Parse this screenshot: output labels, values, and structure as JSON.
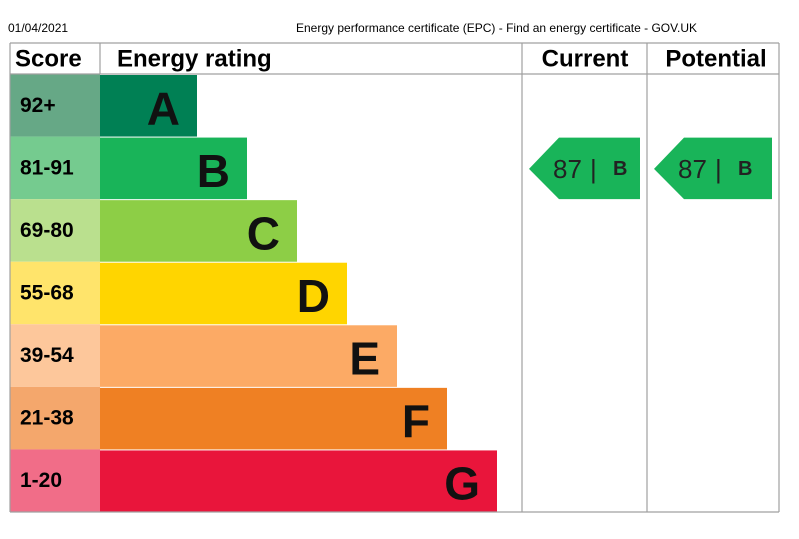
{
  "header": {
    "date": "01/04/2021",
    "title": "Energy performance certificate (EPC) - Find an energy certificate - GOV.UK"
  },
  "table": {
    "headers": [
      "Score",
      "Energy rating",
      "Current",
      "Potential"
    ],
    "rows": [
      {
        "score": "92+",
        "rating": "A",
        "color": "#008054",
        "score_color": "#66a886"
      },
      {
        "score": "81-91",
        "rating": "B",
        "color": "#19b459",
        "score_color": "#75cb8f"
      },
      {
        "score": "69-80",
        "rating": "C",
        "color": "#8dce46",
        "score_color": "#bae08e"
      },
      {
        "score": "55-68",
        "rating": "D",
        "color": "#ffd500",
        "score_color": "#ffe46b"
      },
      {
        "score": "39-54",
        "rating": "E",
        "color": "#fcaa65",
        "score_color": "#fdc79b"
      },
      {
        "score": "21-38",
        "rating": "F",
        "color": "#ef8023",
        "score_color": "#f4a76c"
      },
      {
        "score": "1-20",
        "rating": "G",
        "color": "#e9153b",
        "score_color": "#f16d88"
      }
    ],
    "current": {
      "score": 87,
      "separator": "|",
      "rating": "B",
      "row": 1,
      "color": "#19b459"
    },
    "potential": {
      "score": 87,
      "separator": "|",
      "rating": "B",
      "row": 1,
      "color": "#19b459"
    }
  }
}
